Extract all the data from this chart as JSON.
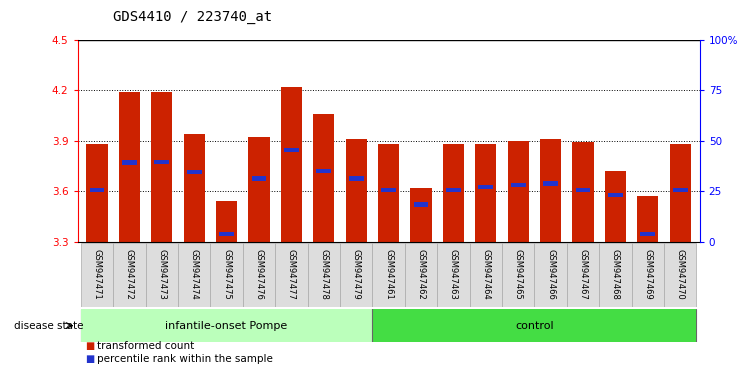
{
  "title": "GDS4410 / 223740_at",
  "samples": [
    "GSM947471",
    "GSM947472",
    "GSM947473",
    "GSM947474",
    "GSM947475",
    "GSM947476",
    "GSM947477",
    "GSM947478",
    "GSM947479",
    "GSM947461",
    "GSM947462",
    "GSM947463",
    "GSM947464",
    "GSM947465",
    "GSM947466",
    "GSM947467",
    "GSM947468",
    "GSM947469",
    "GSM947470"
  ],
  "bar_tops": [
    3.88,
    4.19,
    4.19,
    3.94,
    3.54,
    3.92,
    4.22,
    4.06,
    3.91,
    3.88,
    3.62,
    3.88,
    3.88,
    3.9,
    3.91,
    3.89,
    3.72,
    3.57,
    3.88
  ],
  "blue_positions": [
    3.605,
    3.77,
    3.775,
    3.715,
    3.345,
    3.675,
    3.845,
    3.72,
    3.675,
    3.605,
    3.52,
    3.605,
    3.625,
    3.635,
    3.645,
    3.605,
    3.575,
    3.345,
    3.605
  ],
  "ymin": 3.3,
  "ymax": 4.5,
  "yticks_left": [
    3.3,
    3.6,
    3.9,
    4.2,
    4.5
  ],
  "yticks_right": [
    0,
    25,
    50,
    75,
    100
  ],
  "ytick_labels_right": [
    "0",
    "25",
    "50",
    "75",
    "100%"
  ],
  "group1_label": "infantile-onset Pompe",
  "group2_label": "control",
  "group1_count": 9,
  "group2_count": 10,
  "disease_state_label": "disease state",
  "legend1": "transformed count",
  "legend2": "percentile rank within the sample",
  "bar_color": "#cc2200",
  "blue_color": "#2233cc",
  "bar_bottom": 3.3,
  "bar_width": 0.65,
  "group1_bg": "#bbffbb",
  "group2_bg": "#44dd44",
  "title_fontsize": 10,
  "tick_fontsize": 7.5,
  "label_fontsize": 8
}
